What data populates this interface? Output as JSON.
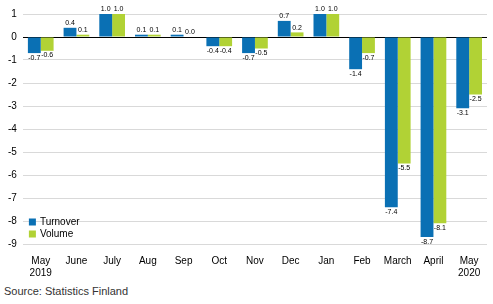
{
  "chart_data": {
    "type": "bar",
    "categories": [
      [
        "May",
        "2019"
      ],
      "June",
      "July",
      "Aug",
      "Sep",
      "Oct",
      "Nov",
      "Dec",
      "Jan",
      "Feb",
      "March",
      "April",
      [
        "May",
        "2020"
      ]
    ],
    "series": [
      {
        "name": "Turnover",
        "color": "#0a70b4",
        "values": [
          -0.7,
          0.4,
          1.0,
          0.1,
          0.1,
          -0.4,
          -0.7,
          0.7,
          1.0,
          -1.4,
          -7.4,
          -8.7,
          -3.1
        ],
        "value_labels": [
          "-0.7",
          "0.4",
          "1.0",
          "0.1",
          "0.1",
          "-0.4",
          "-0.7",
          "0.7",
          "1.0",
          "-1.4",
          "-7.4",
          "-8.7",
          "-3.1"
        ]
      },
      {
        "name": "Volume",
        "color": "#b1d235",
        "values": [
          -0.6,
          0.1,
          1.0,
          0.1,
          0.0,
          -0.4,
          -0.5,
          0.2,
          1.0,
          -0.7,
          -5.5,
          -8.1,
          -2.5
        ],
        "value_labels": [
          "-0.6",
          "0.1",
          "1.0",
          "0.1",
          "0.0",
          "-0.4",
          "-0.5",
          "0.2",
          "1.0",
          "-0.7",
          "-5.5",
          "-8.1",
          "-2.5"
        ]
      }
    ],
    "ylim": [
      -9,
      1
    ],
    "yticks": [
      -9,
      -8,
      -7,
      -6,
      -5,
      -4,
      -3,
      -2,
      -1,
      0,
      1
    ],
    "grid": true,
    "legend": "lower left",
    "data_labels": true,
    "source": "Source: Statistics Finland"
  }
}
